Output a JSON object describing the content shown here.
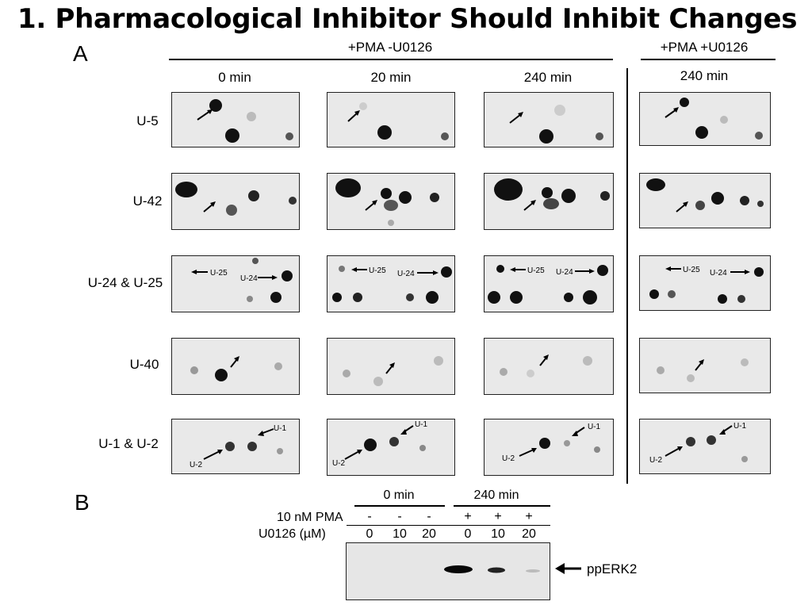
{
  "title": "1. Pharmacological Inhibitor Should Inhibit Changes",
  "panel_a": {
    "label": "A",
    "group1_header": "+PMA -U0126",
    "group2_header": "+PMA +U0126",
    "time_labels": [
      "0 min",
      "20 min",
      "240 min",
      "240 min"
    ],
    "rows": [
      {
        "label": "U-5",
        "annotations": []
      },
      {
        "label": "U-42",
        "annotations": []
      },
      {
        "label": "U-24 & U-25",
        "annotations": [
          "U-25",
          "U-24"
        ]
      },
      {
        "label": "U-40",
        "annotations": []
      },
      {
        "label": "U-1 & U-2",
        "annotations": [
          "U-1",
          "U-2"
        ]
      }
    ]
  },
  "panel_b": {
    "label": "B",
    "time_headers": [
      "0 min",
      "240 min"
    ],
    "row1_label": "10 nM PMA",
    "row1_values": [
      "-",
      "-",
      "-",
      "+",
      "+",
      "+"
    ],
    "row2_label": "U0126 (µM)",
    "row2_values": [
      "0",
      "10",
      "20",
      "0",
      "10",
      "20"
    ],
    "band_label": "ppERK2"
  }
}
